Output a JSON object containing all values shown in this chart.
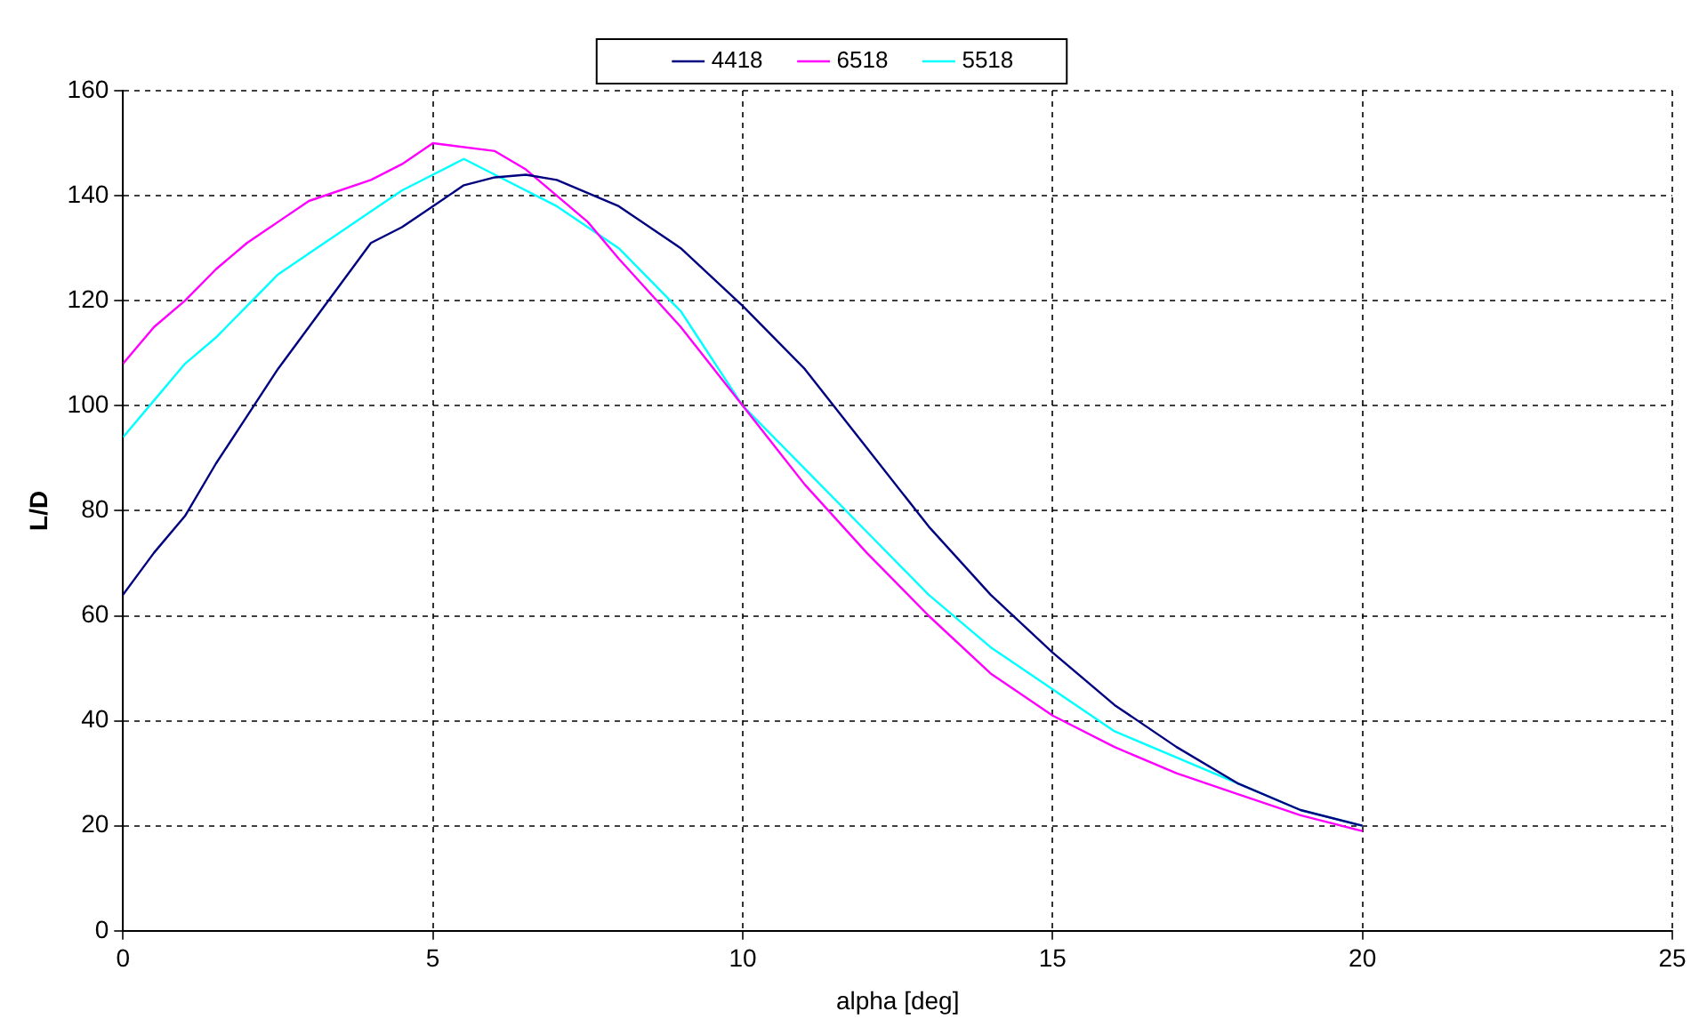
{
  "chart_data": {
    "type": "line",
    "xlabel": "alpha [deg]",
    "ylabel": "L/D",
    "xlim": [
      0,
      25
    ],
    "xticks": [
      0,
      5,
      10,
      15,
      20,
      25
    ],
    "ylim": [
      0,
      160
    ],
    "yticks": [
      0,
      20,
      40,
      60,
      80,
      100,
      120,
      140,
      160
    ],
    "grid": true,
    "legend": "top",
    "marker": "none",
    "line_style": "solid",
    "series": [
      {
        "name": "4418",
        "color": "#000080",
        "x": [
          0,
          0.5,
          1,
          1.5,
          2,
          2.5,
          3,
          3.5,
          4,
          4.5,
          5,
          5.5,
          6,
          6.5,
          7,
          8,
          9,
          10,
          11,
          12,
          13,
          14,
          15,
          16,
          17,
          18,
          19,
          20
        ],
        "values": [
          64,
          72,
          79,
          89,
          98,
          107,
          115,
          123,
          131,
          134,
          138,
          142,
          143.5,
          144,
          143,
          138,
          130,
          119,
          107,
          92,
          77,
          64,
          53,
          43,
          35,
          28,
          23,
          20
        ]
      },
      {
        "name": "6518",
        "color": "#ff00ff",
        "x": [
          0,
          0.5,
          1,
          1.5,
          2,
          2.5,
          3,
          4,
          4.5,
          5,
          6,
          6.5,
          7,
          7.5,
          8,
          9,
          10,
          11,
          12,
          13,
          14,
          15,
          16,
          17,
          18,
          19,
          20
        ],
        "values": [
          108,
          115,
          120,
          126,
          131,
          135,
          139,
          143,
          146,
          150,
          148.5,
          145,
          140,
          135,
          128,
          115,
          100,
          85,
          72,
          60,
          49,
          41,
          35,
          30,
          26,
          22,
          19
        ]
      },
      {
        "name": "5518",
        "color": "#00ffff",
        "x": [
          0,
          0.5,
          1,
          1.5,
          2,
          2.5,
          3,
          4,
          4.5,
          5,
          5.5,
          6,
          7,
          8,
          9,
          10,
          11,
          12,
          13,
          14,
          15,
          16,
          17,
          18,
          19,
          20
        ],
        "values": [
          94,
          101,
          108,
          113,
          119,
          125,
          129,
          137,
          141,
          144,
          147,
          144,
          138,
          130,
          118,
          100,
          88,
          76,
          64,
          54,
          46,
          38,
          33,
          28,
          23,
          20
        ]
      }
    ]
  }
}
